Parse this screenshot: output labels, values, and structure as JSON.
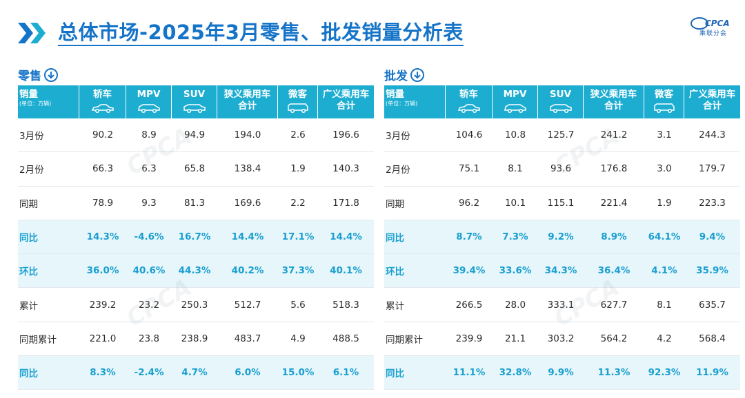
{
  "title": "总体市场-2025年3月零售、批发销量分析表",
  "logo": {
    "mark": "CPCA",
    "sub": "乘联分会"
  },
  "retail": {
    "label": "零售",
    "header": {
      "first": "销量",
      "first_sub": "(单位：万辆)",
      "cols": [
        "轿车",
        "MPV",
        "SUV",
        "狭义乘用车\n合计",
        "微客",
        "广义乘用车\n合计"
      ]
    },
    "rows": [
      {
        "label": "3月份",
        "values": [
          "90.2",
          "8.9",
          "94.9",
          "194.0",
          "2.6",
          "196.6"
        ],
        "highlight": false
      },
      {
        "label": "2月份",
        "values": [
          "66.3",
          "6.3",
          "65.8",
          "138.4",
          "1.9",
          "140.3"
        ],
        "highlight": false
      },
      {
        "label": "同期",
        "values": [
          "78.9",
          "9.3",
          "81.3",
          "169.6",
          "2.2",
          "171.8"
        ],
        "highlight": false
      },
      {
        "label": "同比",
        "values": [
          "14.3%",
          "-4.6%",
          "16.7%",
          "14.4%",
          "17.1%",
          "14.4%"
        ],
        "highlight": true
      },
      {
        "label": "环比",
        "values": [
          "36.0%",
          "40.6%",
          "44.3%",
          "40.2%",
          "37.3%",
          "40.1%"
        ],
        "highlight": true
      },
      {
        "label": "累计",
        "values": [
          "239.2",
          "23.2",
          "250.3",
          "512.7",
          "5.6",
          "518.3"
        ],
        "highlight": false
      },
      {
        "label": "同期累计",
        "values": [
          "221.0",
          "23.8",
          "238.9",
          "483.7",
          "4.9",
          "488.5"
        ],
        "highlight": false
      },
      {
        "label": "同比",
        "values": [
          "8.3%",
          "-2.4%",
          "4.7%",
          "6.0%",
          "15.0%",
          "6.1%"
        ],
        "highlight": true
      }
    ]
  },
  "wholesale": {
    "label": "批发",
    "header": {
      "first": "销量",
      "first_sub": "(单位：万辆)",
      "cols": [
        "轿车",
        "MPV",
        "SUV",
        "狭义乘用车\n合计",
        "微客",
        "广义乘用车\n合计"
      ]
    },
    "rows": [
      {
        "label": "3月份",
        "values": [
          "104.6",
          "10.8",
          "125.7",
          "241.2",
          "3.1",
          "244.3"
        ],
        "highlight": false
      },
      {
        "label": "2月份",
        "values": [
          "75.1",
          "8.1",
          "93.6",
          "176.8",
          "3.0",
          "179.7"
        ],
        "highlight": false
      },
      {
        "label": "同期",
        "values": [
          "96.2",
          "10.1",
          "115.1",
          "221.4",
          "1.9",
          "223.3"
        ],
        "highlight": false
      },
      {
        "label": "同比",
        "values": [
          "8.7%",
          "7.3%",
          "9.2%",
          "8.9%",
          "64.1%",
          "9.4%"
        ],
        "highlight": true
      },
      {
        "label": "环比",
        "values": [
          "39.4%",
          "33.6%",
          "34.3%",
          "36.4%",
          "4.1%",
          "35.9%"
        ],
        "highlight": true
      },
      {
        "label": "累计",
        "values": [
          "266.5",
          "28.0",
          "333.1",
          "627.7",
          "8.1",
          "635.7"
        ],
        "highlight": false
      },
      {
        "label": "同期累计",
        "values": [
          "239.9",
          "21.1",
          "303.2",
          "564.2",
          "4.2",
          "568.4"
        ],
        "highlight": false
      },
      {
        "label": "同比",
        "values": [
          "11.1%",
          "32.8%",
          "9.9%",
          "11.3%",
          "92.3%",
          "11.9%"
        ],
        "highlight": true
      }
    ]
  },
  "colors": {
    "accent": "#1674c8",
    "header_bg": "#1dadd1",
    "highlight_text": "#1a9fd0",
    "highlight_bg": "#e6f6fb"
  },
  "icons": [
    "double-chevron-icon",
    "down-arrow-circle-icon",
    "sedan-icon",
    "mpv-icon",
    "suv-icon",
    "minivan-icon"
  ]
}
